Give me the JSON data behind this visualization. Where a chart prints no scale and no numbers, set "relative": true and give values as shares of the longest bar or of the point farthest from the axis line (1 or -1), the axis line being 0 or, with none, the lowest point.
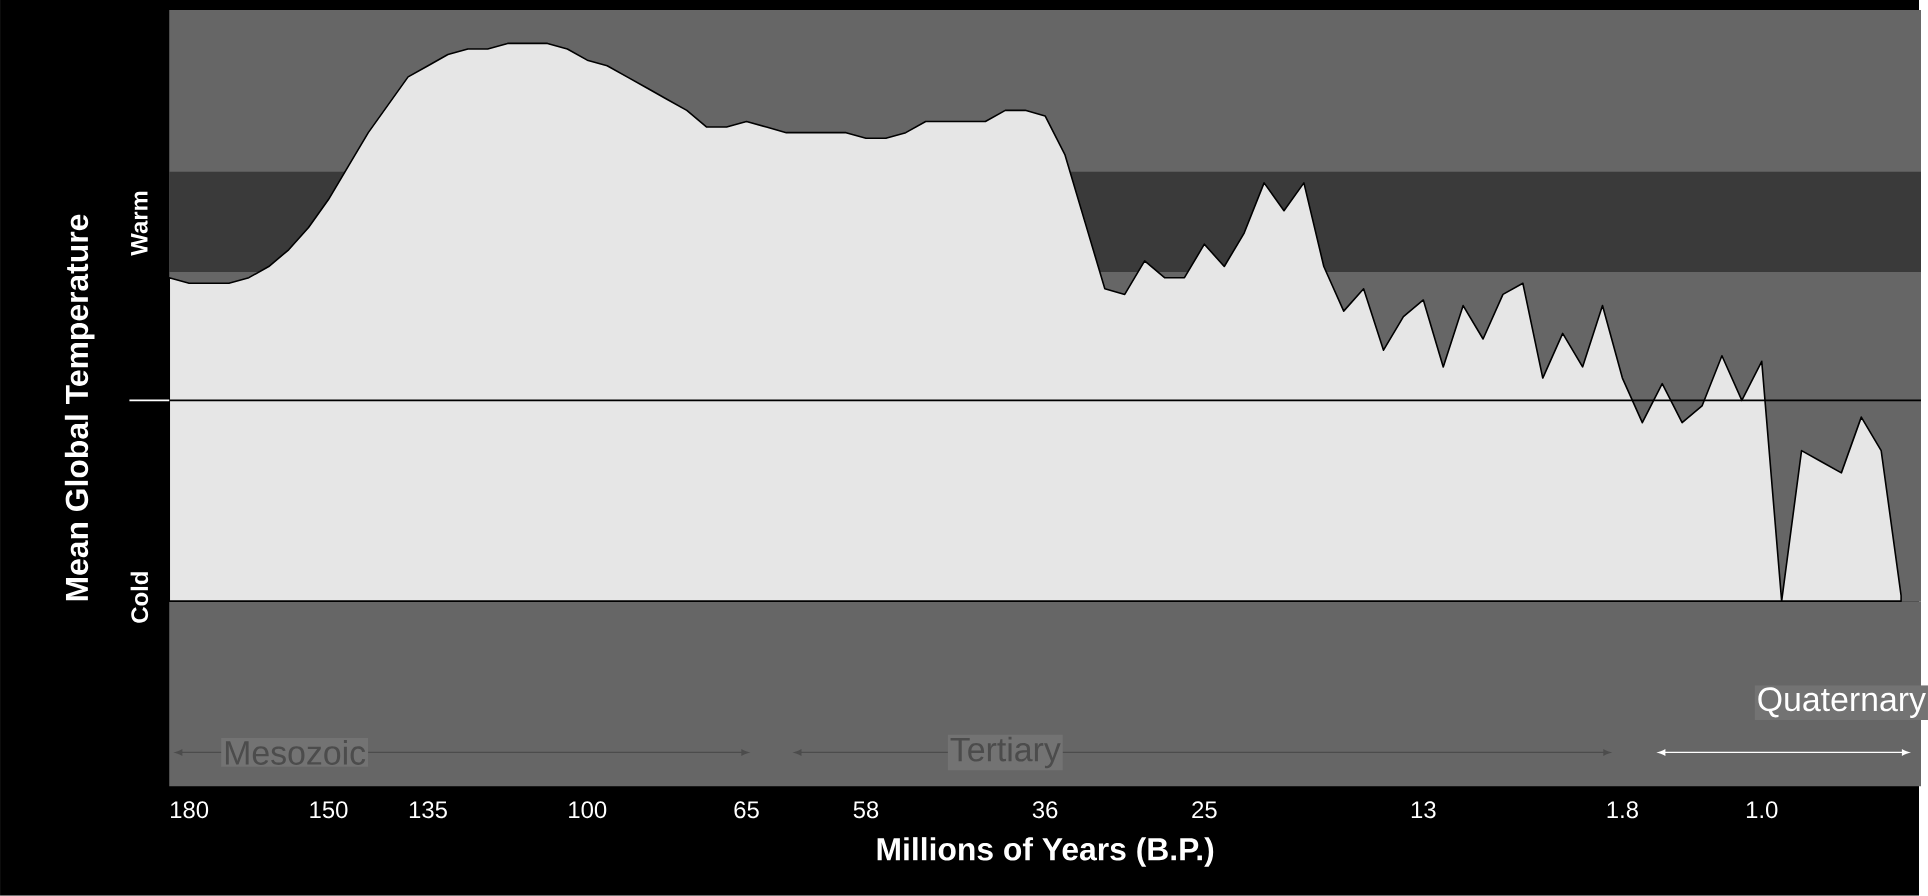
{
  "chart_data": {
    "type": "area",
    "relative": true,
    "color": "#e6e6e6",
    "xlabel": "Millions of Years (B.P.)",
    "ylabel": "Mean Global Temperature",
    "categories": [
      null,
      "180",
      null,
      null,
      null,
      null,
      null,
      null,
      "150",
      null,
      null,
      null,
      null,
      "135",
      null,
      null,
      null,
      null,
      null,
      null,
      null,
      "100",
      null,
      null,
      null,
      null,
      null,
      null,
      null,
      "65",
      null,
      null,
      null,
      null,
      null,
      "58",
      null,
      null,
      null,
      null,
      null,
      null,
      null,
      null,
      "36",
      null,
      null,
      null,
      null,
      null,
      null,
      null,
      "25",
      null,
      null,
      null,
      null,
      null,
      null,
      null,
      null,
      null,
      null,
      "13",
      null,
      null,
      null,
      null,
      null,
      null,
      null,
      null,
      null,
      "1.8",
      null,
      null,
      null,
      null,
      null,
      null,
      "1.0",
      null,
      null,
      null,
      null,
      null,
      null,
      null
    ],
    "values": [
      0.58,
      0.57,
      0.57,
      0.57,
      0.58,
      0.6,
      0.63,
      0.67,
      0.72,
      0.78,
      0.84,
      0.89,
      0.94,
      0.96,
      0.98,
      0.99,
      0.99,
      1.0,
      1.0,
      1.0,
      0.99,
      0.97,
      0.96,
      0.94,
      0.92,
      0.9,
      0.88,
      0.85,
      0.85,
      0.86,
      0.85,
      0.84,
      0.84,
      0.84,
      0.84,
      0.83,
      0.83,
      0.84,
      0.86,
      0.86,
      0.86,
      0.86,
      0.88,
      0.88,
      0.87,
      0.8,
      0.68,
      0.56,
      0.55,
      0.61,
      0.58,
      0.58,
      0.64,
      0.6,
      0.66,
      0.75,
      0.7,
      0.75,
      0.6,
      0.52,
      0.56,
      0.45,
      0.51,
      0.54,
      0.42,
      0.53,
      0.47,
      0.55,
      0.57,
      0.4,
      0.48,
      0.42,
      0.53,
      0.4,
      0.32,
      0.39,
      0.32,
      0.35,
      0.44,
      0.36,
      0.43,
      0.0,
      0.27,
      0.25,
      0.23,
      0.33,
      0.27,
      0.01
    ],
    "bands": [
      {
        "axis": "y",
        "from": 0.59,
        "to": 0.77,
        "color": "#3a3a3a"
      }
    ],
    "ref_lines": [
      {
        "axis": "y",
        "value": 0.36,
        "color": "#000000"
      }
    ],
    "annotations": [
      "Mesozoic",
      "Tertiary",
      "Quaternary",
      "Warm",
      "Cold"
    ]
  }
}
